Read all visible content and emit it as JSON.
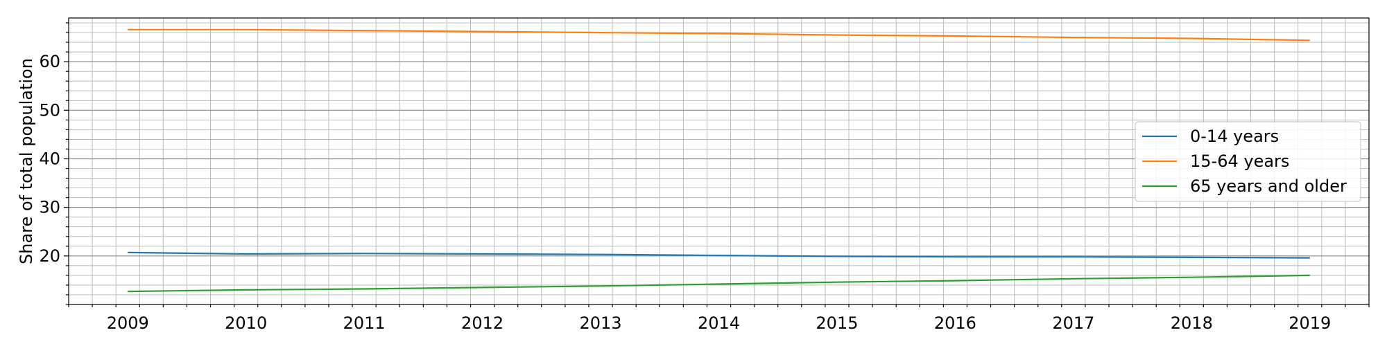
{
  "chart_data": {
    "type": "line",
    "title": "",
    "xlabel": "",
    "ylabel": "Share of total population",
    "x": [
      2009,
      2010,
      2011,
      2012,
      2013,
      2014,
      2015,
      2016,
      2017,
      2018,
      2019
    ],
    "xlim": [
      2008.5,
      2019.5
    ],
    "ylim": [
      10,
      69
    ],
    "x_ticks": [
      "2009",
      "2010",
      "2011",
      "2012",
      "2013",
      "2014",
      "2015",
      "2016",
      "2017",
      "2018",
      "2019"
    ],
    "y_ticks": [
      20,
      30,
      40,
      50,
      60
    ],
    "grid": "major and minor",
    "legend_position": "center-right",
    "series": [
      {
        "name": "0-14 years",
        "color": "#1f77b4",
        "values": [
          20.7,
          20.4,
          20.5,
          20.4,
          20.3,
          20.1,
          19.9,
          19.8,
          19.8,
          19.7,
          19.6
        ]
      },
      {
        "name": "15-64 years",
        "color": "#ff7f0e",
        "values": [
          66.6,
          66.6,
          66.4,
          66.2,
          66.0,
          65.8,
          65.5,
          65.3,
          65.0,
          64.8,
          64.4
        ]
      },
      {
        "name": "65 years and older",
        "color": "#2ca02c",
        "values": [
          12.7,
          13.0,
          13.2,
          13.5,
          13.8,
          14.2,
          14.6,
          14.9,
          15.3,
          15.6,
          16.0
        ]
      }
    ]
  }
}
